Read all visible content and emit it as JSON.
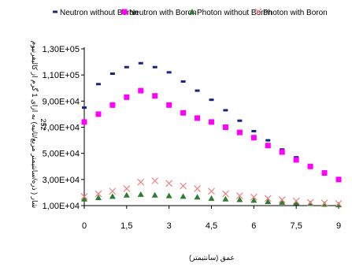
{
  "chart_data": {
    "type": "scatter",
    "xlabel": "عمق (سانتیمتر)",
    "ylabel": "شار ( ذره/سانتیمتر مربع/ثانیه) به ازای 1 گرم از کالیفرنیوم 252",
    "ylabel_lines": [
      "شار ( ذره/سانتیمتر مربع/ثانیه) به ازای 1 گرم از کالیفرنیوم",
      "252"
    ],
    "xlim": [
      0,
      9
    ],
    "ylim": [
      10000,
      130000
    ],
    "x_ticks": [
      0,
      1.5,
      3,
      4.5,
      6,
      7.5,
      9
    ],
    "x_tick_labels": [
      "0",
      "1,5",
      "3",
      "4,5",
      "6",
      "7,5",
      "9"
    ],
    "y_ticks": [
      10000,
      30000,
      50000,
      70000,
      90000,
      110000,
      130000
    ],
    "y_tick_labels": [
      "1,00E+04",
      "3,00E+04",
      "5,00E+04",
      "7,00E+04",
      "9,00E+04",
      "1,10E+05",
      "1,30E+05"
    ],
    "grid": false,
    "legend_position": "top",
    "series": [
      {
        "name": "Neutron without Boron",
        "marker": "dash",
        "color": "#1a237e",
        "x": [
          0,
          0.5,
          1,
          1.5,
          2,
          2.5,
          3,
          3.5,
          4,
          4.5,
          5,
          5.5,
          6,
          6.5,
          7,
          7.5,
          8,
          8.5,
          9
        ],
        "y": [
          85000,
          103000,
          111000,
          116000,
          119000,
          116000,
          112000,
          105000,
          98000,
          91000,
          83000,
          75000,
          67000,
          60000,
          53000,
          47000,
          41000,
          36000,
          31000
        ]
      },
      {
        "name": "Neutron with Boron",
        "marker": "square",
        "color": "#ff00ff",
        "x": [
          0,
          0.5,
          1,
          1.5,
          2,
          2.5,
          3,
          3.5,
          4,
          4.5,
          5,
          5.5,
          6,
          6.5,
          7,
          7.5,
          8,
          8.5,
          9
        ],
        "y": [
          74000,
          80000,
          87000,
          93000,
          98000,
          94000,
          87000,
          81000,
          77000,
          74000,
          70000,
          66000,
          62000,
          56000,
          51000,
          45000,
          40000,
          35000,
          30000
        ]
      },
      {
        "name": "Photon without Boron",
        "marker": "triangle",
        "color": "#2e7d32",
        "x": [
          0,
          0.5,
          1,
          1.5,
          2,
          2.5,
          3,
          3.5,
          4,
          4.5,
          5,
          5.5,
          6,
          6.5,
          7,
          7.5,
          8,
          8.5,
          9
        ],
        "y": [
          15000,
          16000,
          17000,
          18000,
          18500,
          18000,
          17500,
          17000,
          16500,
          15500,
          15000,
          14500,
          14000,
          13000,
          12500,
          12000,
          11500,
          11000,
          10500
        ]
      },
      {
        "name": "Photon with Boron",
        "marker": "x",
        "color": "#f08080",
        "x": [
          0,
          0.5,
          1,
          1.5,
          2,
          2.5,
          3,
          3.5,
          4,
          4.5,
          5,
          5.5,
          6,
          6.5,
          7,
          7.5,
          8,
          8.5,
          9
        ],
        "y": [
          17000,
          19000,
          21000,
          23000,
          28000,
          29000,
          27000,
          25000,
          23000,
          21000,
          19000,
          17500,
          16500,
          15500,
          14500,
          13500,
          12500,
          12000,
          11500
        ]
      }
    ]
  }
}
